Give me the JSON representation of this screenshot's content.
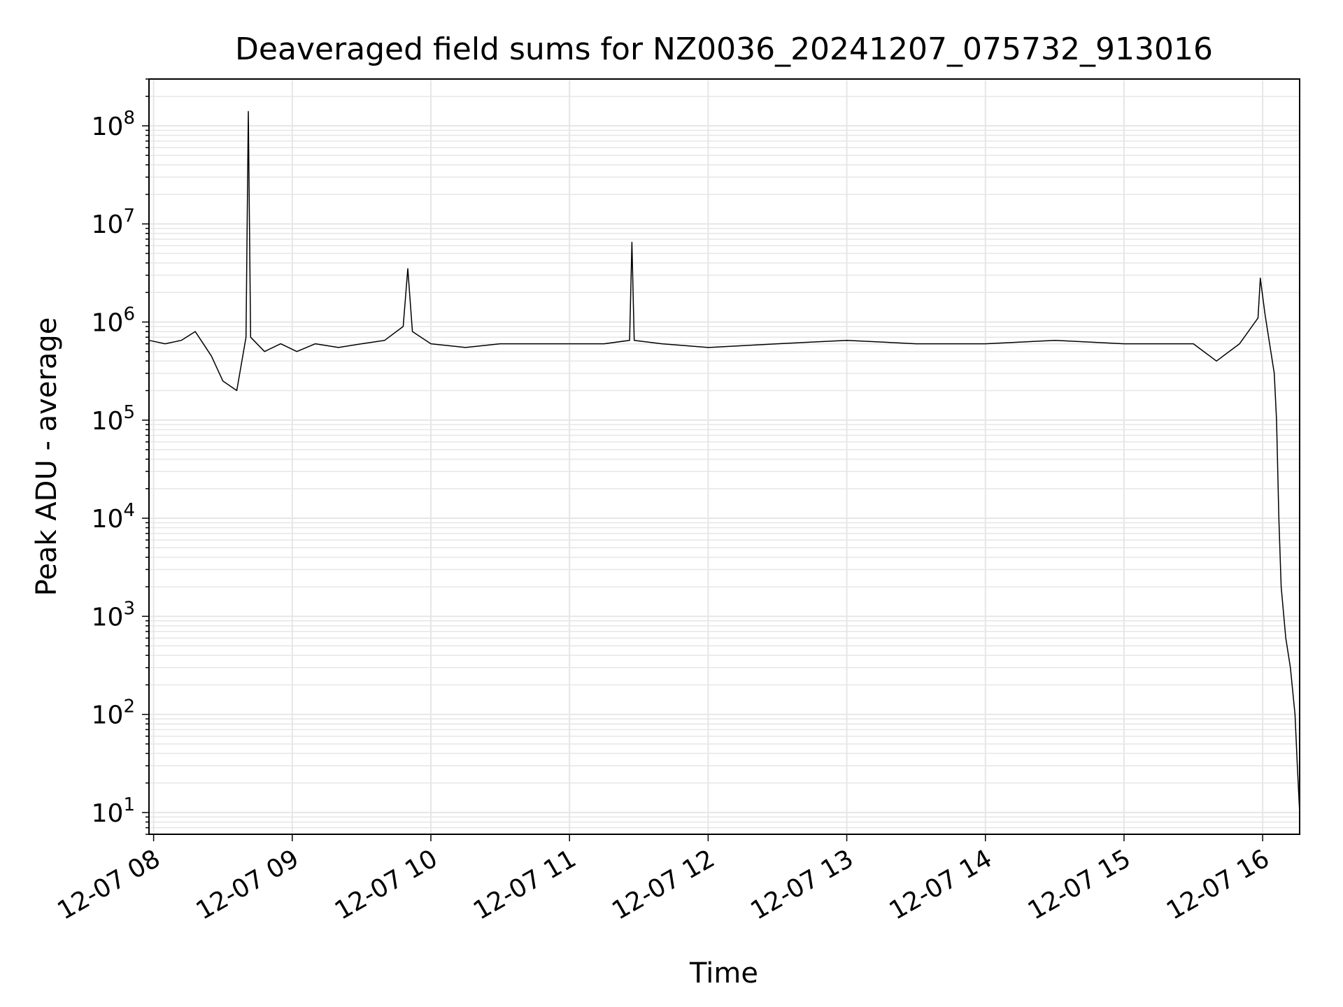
{
  "chart_data": {
    "type": "line",
    "title": "Deaveraged field sums for NZ0036_20241207_075732_913016",
    "xlabel": "Time",
    "ylabel": "Peak ADU - average",
    "y_scale": "log",
    "ylim": [
      6,
      300000000
    ],
    "xlim": [
      "2024-12-07T07:58",
      "2024-12-07T16:16"
    ],
    "grid": true,
    "x_ticks": [
      "12-07 08",
      "12-07 09",
      "12-07 10",
      "12-07 11",
      "12-07 12",
      "12-07 13",
      "12-07 14",
      "12-07 15",
      "12-07 16"
    ],
    "x_tick_times": [
      "2024-12-07T08:00",
      "2024-12-07T09:00",
      "2024-12-07T10:00",
      "2024-12-07T11:00",
      "2024-12-07T12:00",
      "2024-12-07T13:00",
      "2024-12-07T14:00",
      "2024-12-07T15:00",
      "2024-12-07T16:00"
    ],
    "y_ticks": [
      {
        "value": 10,
        "base": "10",
        "exp": "1"
      },
      {
        "value": 100,
        "base": "10",
        "exp": "2"
      },
      {
        "value": 1000,
        "base": "10",
        "exp": "3"
      },
      {
        "value": 10000,
        "base": "10",
        "exp": "4"
      },
      {
        "value": 100000,
        "base": "10",
        "exp": "5"
      },
      {
        "value": 1000000,
        "base": "10",
        "exp": "6"
      },
      {
        "value": 10000000,
        "base": "10",
        "exp": "7"
      },
      {
        "value": 100000000,
        "base": "10",
        "exp": "8"
      }
    ],
    "series": [
      {
        "color": "#000000",
        "x": [
          "2024-12-07T07:58",
          "2024-12-07T08:05",
          "2024-12-07T08:12",
          "2024-12-07T08:18",
          "2024-12-07T08:25",
          "2024-12-07T08:30",
          "2024-12-07T08:36",
          "2024-12-07T08:40",
          "2024-12-07T08:41",
          "2024-12-07T08:42",
          "2024-12-07T08:48",
          "2024-12-07T08:55",
          "2024-12-07T09:02",
          "2024-12-07T09:10",
          "2024-12-07T09:20",
          "2024-12-07T09:30",
          "2024-12-07T09:40",
          "2024-12-07T09:48",
          "2024-12-07T09:50",
          "2024-12-07T09:52",
          "2024-12-07T10:00",
          "2024-12-07T10:15",
          "2024-12-07T10:30",
          "2024-12-07T10:45",
          "2024-12-07T11:00",
          "2024-12-07T11:15",
          "2024-12-07T11:26",
          "2024-12-07T11:27",
          "2024-12-07T11:28",
          "2024-12-07T11:40",
          "2024-12-07T12:00",
          "2024-12-07T12:30",
          "2024-12-07T13:00",
          "2024-12-07T13:30",
          "2024-12-07T14:00",
          "2024-12-07T14:30",
          "2024-12-07T15:00",
          "2024-12-07T15:30",
          "2024-12-07T15:40",
          "2024-12-07T15:50",
          "2024-12-07T15:58",
          "2024-12-07T15:59",
          "2024-12-07T16:01",
          "2024-12-07T16:03",
          "2024-12-07T16:05",
          "2024-12-07T16:06",
          "2024-12-07T16:07",
          "2024-12-07T16:08",
          "2024-12-07T16:10",
          "2024-12-07T16:12",
          "2024-12-07T16:14",
          "2024-12-07T16:15",
          "2024-12-07T16:16"
        ],
        "y": [
          650000,
          600000,
          650000,
          800000,
          450000,
          250000,
          200000,
          700000,
          140000000,
          700000,
          500000,
          600000,
          500000,
          600000,
          550000,
          600000,
          650000,
          900000,
          3500000,
          800000,
          600000,
          550000,
          600000,
          600000,
          600000,
          600000,
          650000,
          6500000,
          650000,
          600000,
          550000,
          600000,
          650000,
          600000,
          600000,
          650000,
          600000,
          600000,
          400000,
          600000,
          1100000,
          2800000,
          1200000,
          600000,
          300000,
          100000,
          10000,
          2000,
          600,
          300,
          100,
          30,
          10
        ]
      }
    ]
  }
}
